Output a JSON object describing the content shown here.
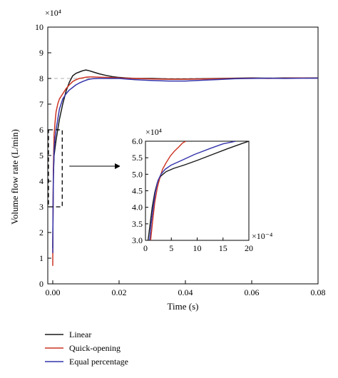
{
  "chart_data": [
    {
      "type": "line",
      "title": "",
      "xlabel": "Time (s)",
      "ylabel": "Volume flow rate (L/min)",
      "y_multiplier": "×10⁴",
      "xlim": [
        -0.0015,
        0.08
      ],
      "ylim": [
        0,
        10
      ],
      "x_ticks": [
        0,
        0.02,
        0.04,
        0.06,
        0.08
      ],
      "x_tick_labels": [
        "0.00",
        "0.02",
        "0.04",
        "0.06",
        "0.08"
      ],
      "y_ticks": [
        0,
        1,
        2,
        3,
        4,
        5,
        6,
        7,
        8,
        9,
        10
      ],
      "y_tick_labels": [
        "0",
        "1",
        "2",
        "3",
        "4",
        "5",
        "6",
        "7",
        "8",
        "9",
        "10"
      ],
      "grid": false,
      "reference_line": {
        "y": 8,
        "style": "dashed",
        "color": "#b0b0b0"
      },
      "zoom_region": {
        "x": [
          0,
          0.002
        ],
        "y": [
          3,
          6
        ],
        "style": "dashed"
      },
      "legend": {
        "placement": "below"
      },
      "series": [
        {
          "name": "Linear",
          "color": "#1a1a1a",
          "x": [
            0,
            0.0001,
            0.0002,
            0.0004,
            0.0007,
            0.001,
            0.0015,
            0.002,
            0.003,
            0.004,
            0.005,
            0.006,
            0.007,
            0.008,
            0.009,
            0.01,
            0.011,
            0.012,
            0.014,
            0.016,
            0.018,
            0.02,
            0.022,
            0.025,
            0.03,
            0.035,
            0.04,
            0.045,
            0.05,
            0.055,
            0.06,
            0.065,
            0.07,
            0.075,
            0.08
          ],
          "values": [
            1.4,
            3.0,
            4.3,
            5.0,
            5.3,
            5.6,
            6.0,
            6.4,
            7.0,
            7.5,
            7.85,
            8.1,
            8.2,
            8.25,
            8.3,
            8.33,
            8.3,
            8.26,
            8.18,
            8.12,
            8.07,
            8.04,
            8.02,
            8.0,
            8.0,
            7.98,
            7.98,
            7.99,
            8.0,
            8.01,
            8.02,
            8.01,
            8.02,
            8.02,
            8.02
          ]
        },
        {
          "name": "Quick-opening",
          "color": "#cc3322",
          "x": [
            0,
            0.0001,
            0.0002,
            0.0004,
            0.0007,
            0.001,
            0.0015,
            0.002,
            0.003,
            0.004,
            0.005,
            0.006,
            0.007,
            0.008,
            0.009,
            0.01,
            0.011,
            0.012,
            0.014,
            0.016,
            0.018,
            0.02,
            0.022,
            0.025,
            0.03,
            0.035,
            0.04,
            0.045,
            0.05,
            0.055,
            0.06,
            0.065,
            0.07,
            0.075,
            0.08
          ],
          "values": [
            0.7,
            3.2,
            4.6,
            5.8,
            6.3,
            6.7,
            7.0,
            7.2,
            7.4,
            7.6,
            7.75,
            7.88,
            7.95,
            8.0,
            8.02,
            8.05,
            8.06,
            8.06,
            8.05,
            8.04,
            8.03,
            8.02,
            8.01,
            8.0,
            7.98,
            7.97,
            7.97,
            7.98,
            7.99,
            8.0,
            8.01,
            8.0,
            8.01,
            8.02,
            8.01
          ]
        },
        {
          "name": "Equal percentage",
          "color": "#3333aa",
          "x": [
            0,
            0.0001,
            0.0002,
            0.0004,
            0.0007,
            0.001,
            0.0015,
            0.002,
            0.003,
            0.004,
            0.005,
            0.006,
            0.007,
            0.008,
            0.009,
            0.01,
            0.011,
            0.012,
            0.014,
            0.016,
            0.018,
            0.02,
            0.022,
            0.025,
            0.03,
            0.035,
            0.04,
            0.045,
            0.05,
            0.055,
            0.06,
            0.065,
            0.07,
            0.075,
            0.08
          ],
          "values": [
            1.2,
            3.0,
            4.2,
            5.2,
            5.7,
            6.0,
            6.4,
            6.8,
            7.2,
            7.4,
            7.55,
            7.65,
            7.75,
            7.82,
            7.88,
            7.93,
            7.97,
            7.99,
            8.0,
            8.0,
            8.0,
            8.0,
            7.98,
            7.95,
            7.92,
            7.9,
            7.9,
            7.93,
            7.96,
            7.99,
            8.0,
            8.01,
            8.0,
            8.01,
            8.01
          ]
        }
      ]
    },
    {
      "type": "line",
      "title": "",
      "xlabel": "",
      "ylabel": "",
      "x_multiplier": "×10⁻⁴",
      "y_multiplier": "×10⁴",
      "xlim": [
        0,
        20
      ],
      "ylim": [
        3,
        6
      ],
      "x_ticks": [
        0,
        5,
        10,
        15,
        20
      ],
      "x_tick_labels": [
        "0",
        "5",
        "10",
        "15",
        "20"
      ],
      "y_ticks": [
        3,
        3.5,
        4,
        4.5,
        5,
        5.5,
        6
      ],
      "y_tick_labels": [
        "3.0",
        "3.5",
        "4.0",
        "4.5",
        "5.0",
        "5.5",
        "6.0"
      ],
      "grid": false,
      "series": [
        {
          "name": "Linear",
          "color": "#1a1a1a",
          "x": [
            0.5,
            0.9,
            1.3,
            1.8,
            2.3,
            3.0,
            4.0,
            5.5,
            7.5,
            10,
            13,
            16,
            18.5,
            20
          ],
          "values": [
            3.0,
            3.5,
            4.0,
            4.45,
            4.75,
            4.95,
            5.08,
            5.18,
            5.28,
            5.42,
            5.6,
            5.78,
            5.92,
            6.0
          ]
        },
        {
          "name": "Quick-opening",
          "color": "#cc3322",
          "x": [
            1.0,
            1.4,
            1.8,
            2.3,
            2.8,
            3.3,
            4.0,
            4.8,
            5.6,
            6.4,
            7.2,
            7.8
          ],
          "values": [
            3.0,
            3.6,
            4.15,
            4.6,
            4.9,
            5.15,
            5.35,
            5.55,
            5.7,
            5.82,
            5.95,
            6.0
          ]
        },
        {
          "name": "Equal percentage",
          "color": "#3333aa",
          "x": [
            0.8,
            1.1,
            1.5,
            1.9,
            2.4,
            3.0,
            3.8,
            5.0,
            7.0,
            9.5,
            12.5,
            15,
            17.5
          ],
          "values": [
            3.0,
            3.5,
            4.0,
            4.45,
            4.8,
            5.0,
            5.15,
            5.28,
            5.42,
            5.6,
            5.78,
            5.92,
            6.0
          ]
        }
      ]
    }
  ]
}
